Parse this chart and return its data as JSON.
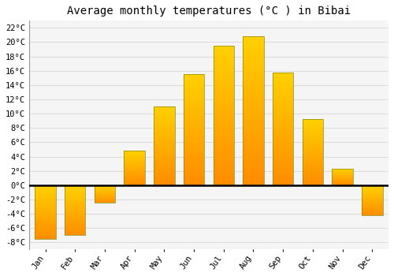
{
  "title": "Average monthly temperatures (°C ) in Bibai",
  "months": [
    "Jan",
    "Feb",
    "Mar",
    "Apr",
    "May",
    "Jun",
    "Jul",
    "Aug",
    "Sep",
    "Oct",
    "Nov",
    "Dec"
  ],
  "values": [
    -7.5,
    -7.0,
    -2.5,
    4.8,
    11.0,
    15.5,
    19.5,
    20.8,
    15.7,
    9.2,
    2.3,
    -4.2
  ],
  "bar_color_top": "#FFB700",
  "bar_color_bottom": "#FF8C00",
  "bar_edge_color": "#888800",
  "background_color": "#FFFFFF",
  "plot_bg_color": "#F5F5F5",
  "grid_color": "#DDDDDD",
  "ylim": [
    -9,
    23
  ],
  "yticks": [
    -8,
    -6,
    -4,
    -2,
    0,
    2,
    4,
    6,
    8,
    10,
    12,
    14,
    16,
    18,
    20,
    22
  ],
  "zero_line_color": "#000000",
  "title_fontsize": 10,
  "tick_fontsize": 7.5,
  "font_family": "monospace"
}
